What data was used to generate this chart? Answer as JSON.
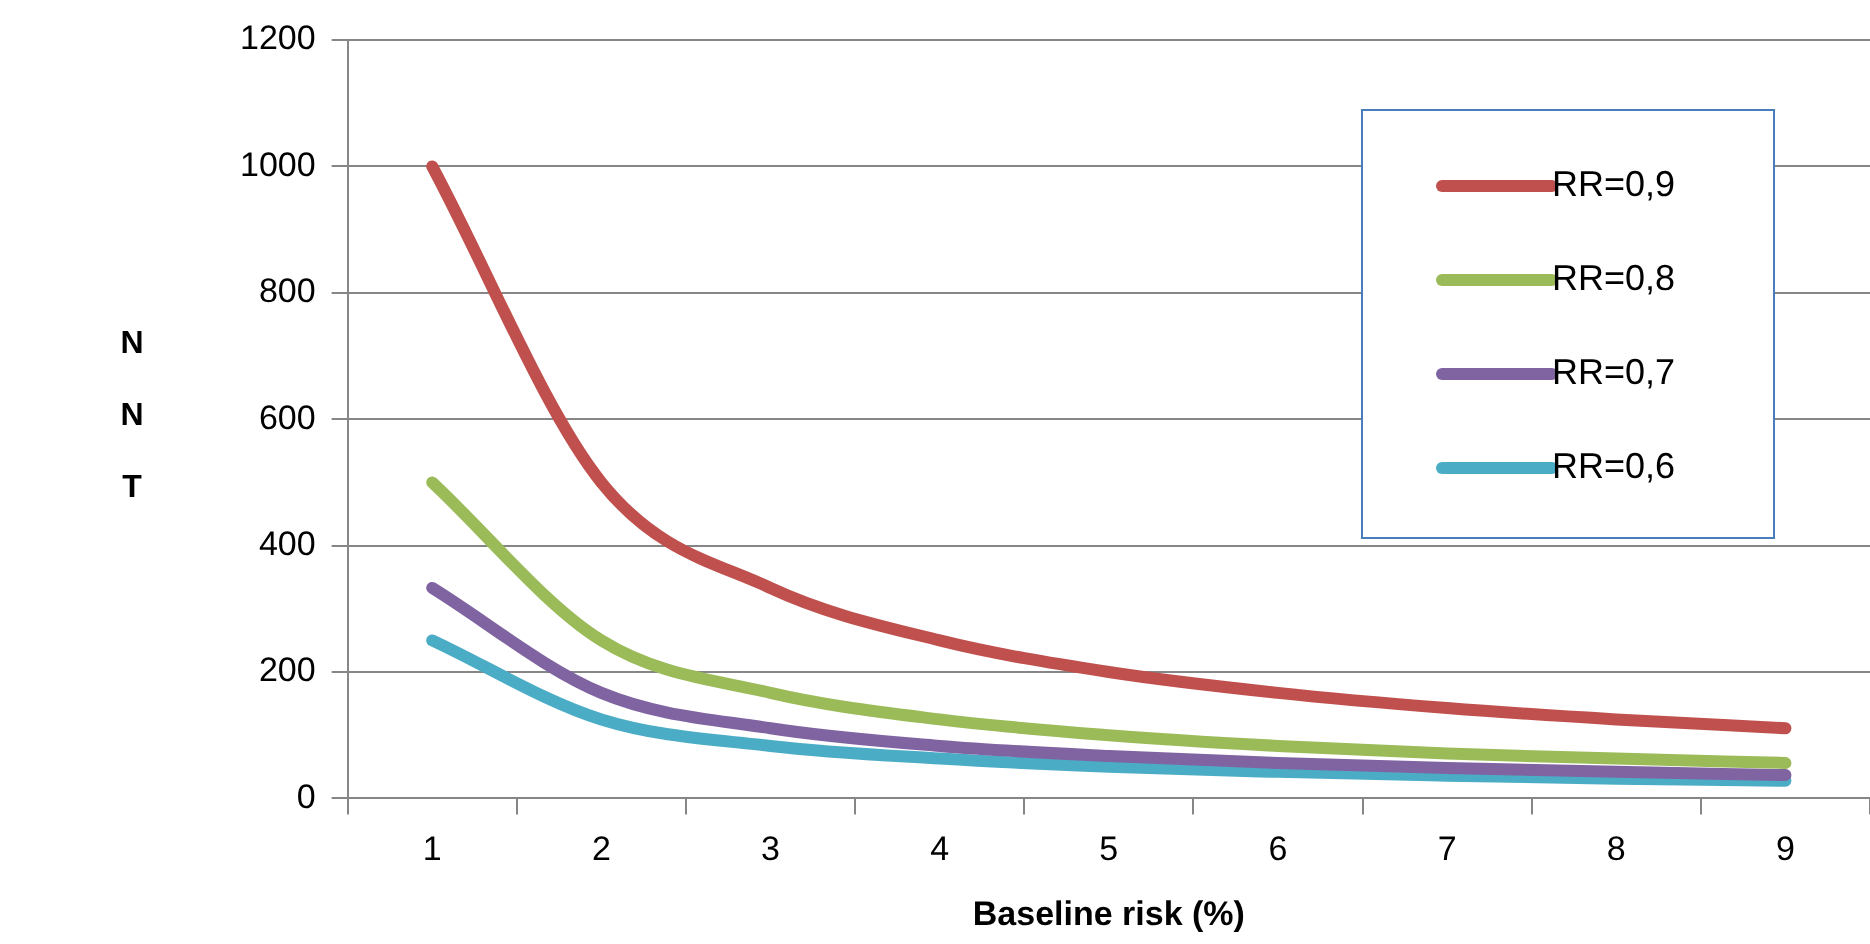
{
  "chart_data": {
    "type": "line",
    "xlabel": "Baseline risk (%)",
    "ylabel": "NNT",
    "categories": [
      "1",
      "2",
      "3",
      "4",
      "5",
      "6",
      "7",
      "8",
      "9"
    ],
    "series": [
      {
        "name": "RR=0,9",
        "color": "#c0504d",
        "values": [
          1000,
          500,
          333,
          250,
          200,
          167,
          143,
          125,
          111
        ]
      },
      {
        "name": "RR=0,8",
        "color": "#9bbb59",
        "values": [
          500,
          250,
          167,
          125,
          100,
          83,
          71,
          63,
          56
        ]
      },
      {
        "name": "RR=0,7",
        "color": "#8064a2",
        "values": [
          333,
          167,
          111,
          83,
          67,
          56,
          48,
          42,
          37
        ]
      },
      {
        "name": "RR=0,6",
        "color": "#4bacc6",
        "values": [
          250,
          125,
          83,
          63,
          50,
          42,
          36,
          31,
          28
        ]
      }
    ],
    "ylim": [
      0,
      1200
    ],
    "yticks": [
      0,
      200,
      400,
      600,
      800,
      1000,
      1200
    ],
    "grid": "y",
    "legend": "top right",
    "marker": "none",
    "line_style": "solid"
  }
}
